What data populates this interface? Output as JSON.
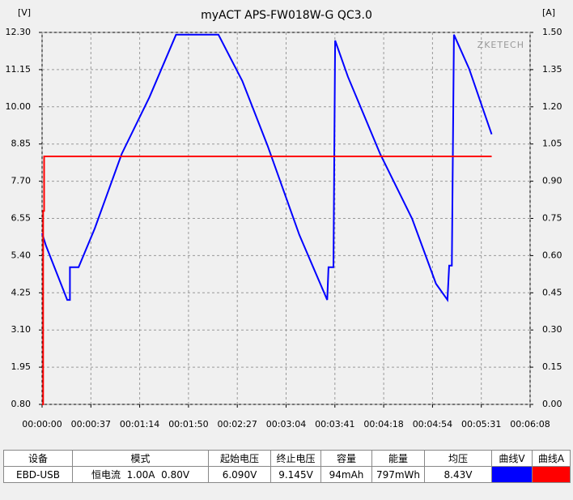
{
  "chart_data": {
    "type": "line",
    "title": "myACT APS-FW018W-G QC3.0",
    "y_label": "[V]",
    "y2_label": "[A]",
    "annotation": "ZKETECH",
    "xlim": [
      0,
      368
    ],
    "ylim": [
      0.8,
      12.3
    ],
    "y2lim": [
      0,
      1.5
    ],
    "grid": true,
    "xticks": [
      {
        "value": 0,
        "label": "00:00:00"
      },
      {
        "value": 36.8,
        "label": "00:00:37"
      },
      {
        "value": 73.6,
        "label": "00:01:14"
      },
      {
        "value": 110.4,
        "label": "00:01:50"
      },
      {
        "value": 147.2,
        "label": "00:02:27"
      },
      {
        "value": 184,
        "label": "00:03:04"
      },
      {
        "value": 220.8,
        "label": "00:03:41"
      },
      {
        "value": 257.6,
        "label": "00:04:18"
      },
      {
        "value": 294.4,
        "label": "00:04:54"
      },
      {
        "value": 331.2,
        "label": "00:05:31"
      },
      {
        "value": 368,
        "label": "00:06:08"
      }
    ],
    "yticks": [
      {
        "value": 0.8,
        "label": "0.80"
      },
      {
        "value": 1.95,
        "label": "1.95"
      },
      {
        "value": 3.1,
        "label": "3.10"
      },
      {
        "value": 4.25,
        "label": "4.25"
      },
      {
        "value": 5.4,
        "label": "5.40"
      },
      {
        "value": 6.55,
        "label": "6.55"
      },
      {
        "value": 7.7,
        "label": "7.70"
      },
      {
        "value": 8.85,
        "label": "8.85"
      },
      {
        "value": 10,
        "label": "10.00"
      },
      {
        "value": 11.15,
        "label": "11.15"
      },
      {
        "value": 12.3,
        "label": "12.30"
      }
    ],
    "y2ticks": [
      {
        "value": 0,
        "label": "0.00"
      },
      {
        "value": 0.15,
        "label": "0.15"
      },
      {
        "value": 0.3,
        "label": "0.30"
      },
      {
        "value": 0.45,
        "label": "0.45"
      },
      {
        "value": 0.6,
        "label": "0.60"
      },
      {
        "value": 0.75,
        "label": "0.75"
      },
      {
        "value": 0.9,
        "label": "0.90"
      },
      {
        "value": 1.05,
        "label": "1.05"
      },
      {
        "value": 1.2,
        "label": "1.20"
      },
      {
        "value": 1.35,
        "label": "1.35"
      },
      {
        "value": 1.5,
        "label": "1.50"
      }
    ],
    "series": [
      {
        "color": "#0000ff",
        "x": [
          0,
          3,
          19,
          21,
          21,
          27.5,
          39.7,
          60,
          81,
          101,
          133,
          151,
          170,
          194,
          215,
          216,
          219.7,
          221,
          230.6,
          255,
          279,
          297,
          305.7,
          307,
          309,
          310.6,
          322,
          339
        ],
        "values": [
          6.09,
          5.7,
          4.03,
          4.03,
          5.04,
          5.04,
          6.24,
          8.54,
          10.3,
          12.23,
          12.23,
          10.8,
          8.8,
          6.04,
          4.03,
          5.04,
          5.04,
          12.05,
          10.93,
          8.54,
          6.54,
          4.53,
          4.03,
          5.09,
          5.09,
          12.23,
          11.18,
          9.15
        ]
      },
      {
        "color": "#ff0000",
        "axis": "y2",
        "x": [
          0,
          0.8,
          0.8,
          1.5,
          1.5,
          339
        ],
        "values": [
          0,
          0,
          0.78,
          0.78,
          1.0,
          1.0
        ]
      }
    ]
  },
  "table": {
    "headers": [
      "设备",
      "模式",
      "起始电压",
      "终止电压",
      "容量",
      "能量",
      "均压",
      "曲线V",
      "曲线A"
    ],
    "rows": [
      [
        "EBD-USB",
        "恒电流  1.00A  0.80V",
        "6.090V",
        "9.145V",
        "94mAh",
        "797mWh",
        "8.43V"
      ]
    ]
  }
}
